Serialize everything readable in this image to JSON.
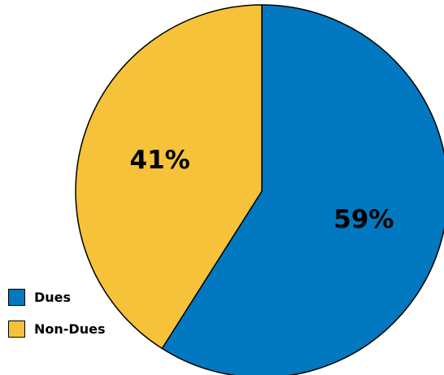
{
  "chart_data": {
    "type": "pie",
    "title": "",
    "slices": [
      {
        "label": "Dues",
        "value": 59,
        "display": "59%",
        "color": "#0178BF"
      },
      {
        "label": "Non-Dues",
        "value": 41,
        "display": "41%",
        "color": "#F5C23A"
      }
    ],
    "start_angle_deg": 0,
    "direction": "clockwise",
    "legend_position": "bottom-left"
  }
}
